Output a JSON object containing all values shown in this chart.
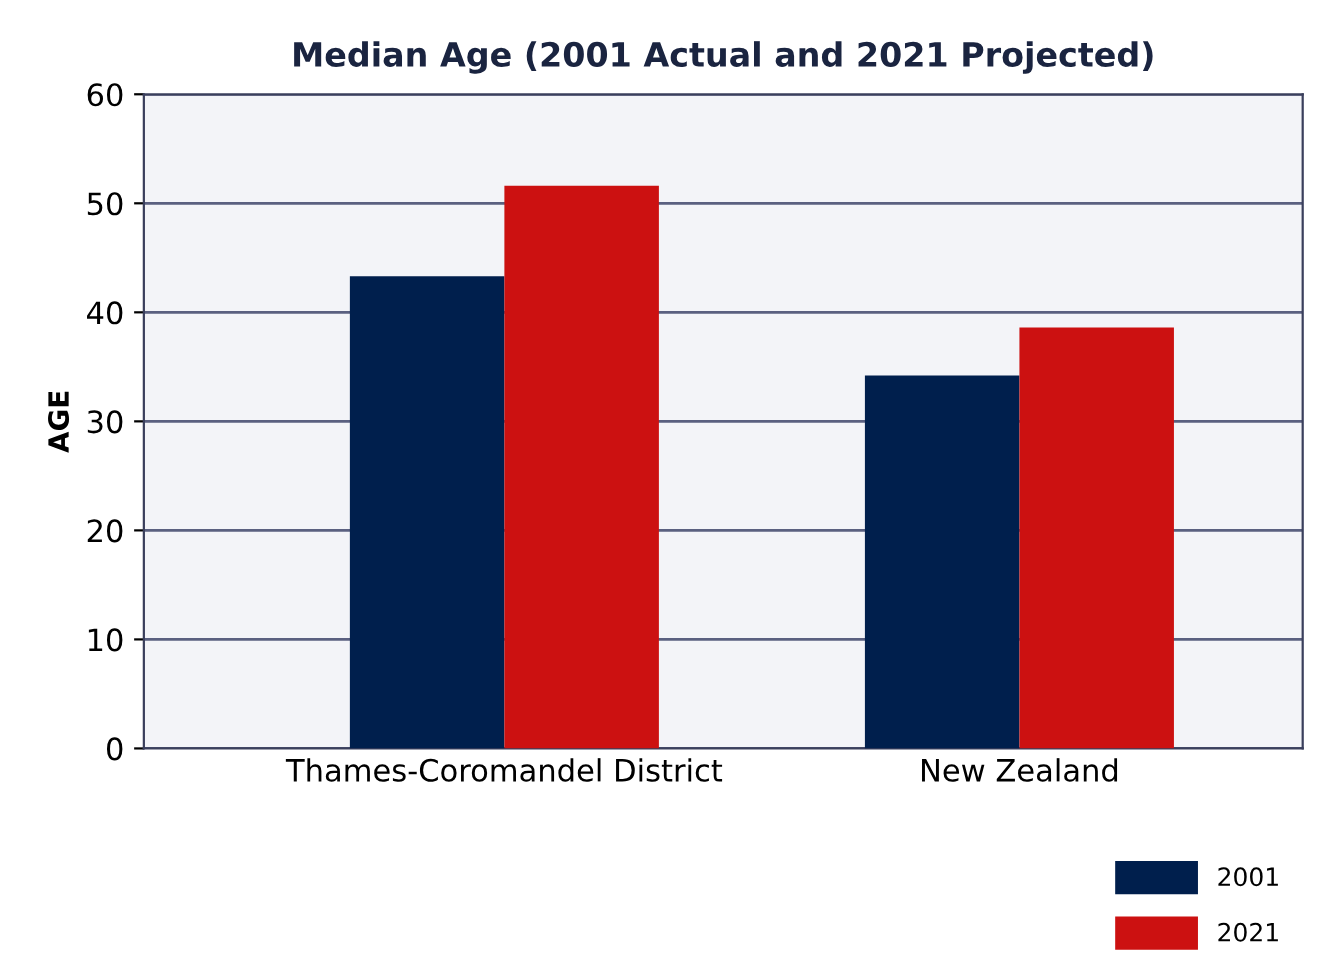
{
  "chart_data": {
    "type": "bar",
    "title": "Median Age (2001 Actual and 2021 Projected)",
    "ylabel": "AGE",
    "categories": [
      "Thames-Coromandel District",
      "New Zealand"
    ],
    "series": [
      {
        "name": "2001",
        "color": "#001f4d",
        "values": [
          43.3,
          34.2
        ]
      },
      {
        "name": "2021",
        "color": "#cc1111",
        "values": [
          51.6,
          38.6
        ]
      }
    ],
    "ylim": [
      0,
      60
    ],
    "yticks": [
      0,
      10,
      20,
      30,
      40,
      50,
      60
    ],
    "grid": "y",
    "legend": "bottom right"
  }
}
